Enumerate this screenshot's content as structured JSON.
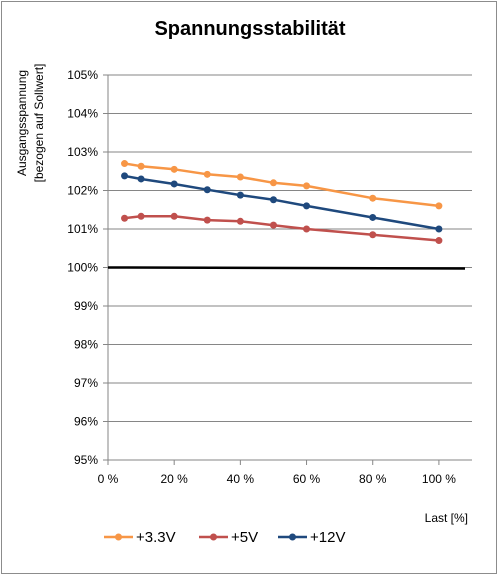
{
  "chart_data": {
    "type": "line",
    "title": "Spannungsstabilität",
    "ylabel": [
      "Ausgangsspannung",
      "[bezogen auf Sollwert]"
    ],
    "xlabel": "Last [%]",
    "ylim": [
      95,
      105
    ],
    "y_ticks": [
      95,
      96,
      97,
      98,
      99,
      100,
      101,
      102,
      103,
      104,
      105
    ],
    "y_tick_labels": [
      "95%",
      "96%",
      "97%",
      "98%",
      "99%",
      "100%",
      "101%",
      "102%",
      "103%",
      "104%",
      "105%"
    ],
    "xlim": [
      0,
      110
    ],
    "x_ticks": [
      0,
      20,
      40,
      60,
      80,
      100
    ],
    "x_tick_labels": [
      "0 %",
      "20 %",
      "40 %",
      "60 %",
      "80 %",
      "100 %"
    ],
    "grid": "horizontal",
    "legend_position": "bottom",
    "reference_line": {
      "y": 100,
      "color": "#000000"
    },
    "series": [
      {
        "name": "+3.3V",
        "color": "#f79646",
        "x": [
          5,
          10,
          20,
          30,
          40,
          50,
          60,
          80,
          100
        ],
        "y": [
          102.7,
          102.63,
          102.55,
          102.42,
          102.35,
          102.2,
          102.12,
          101.8,
          101.6
        ]
      },
      {
        "name": "+5V",
        "color": "#c0504d",
        "x": [
          5,
          10,
          20,
          30,
          40,
          50,
          60,
          80,
          100
        ],
        "y": [
          101.28,
          101.33,
          101.33,
          101.23,
          101.2,
          101.1,
          101.0,
          100.85,
          100.7
        ]
      },
      {
        "name": "+12V",
        "color": "#1f497d",
        "x": [
          5,
          10,
          20,
          30,
          40,
          50,
          60,
          80,
          100
        ],
        "y": [
          102.38,
          102.3,
          102.17,
          102.02,
          101.88,
          101.76,
          101.6,
          101.3,
          101.0
        ]
      }
    ]
  }
}
